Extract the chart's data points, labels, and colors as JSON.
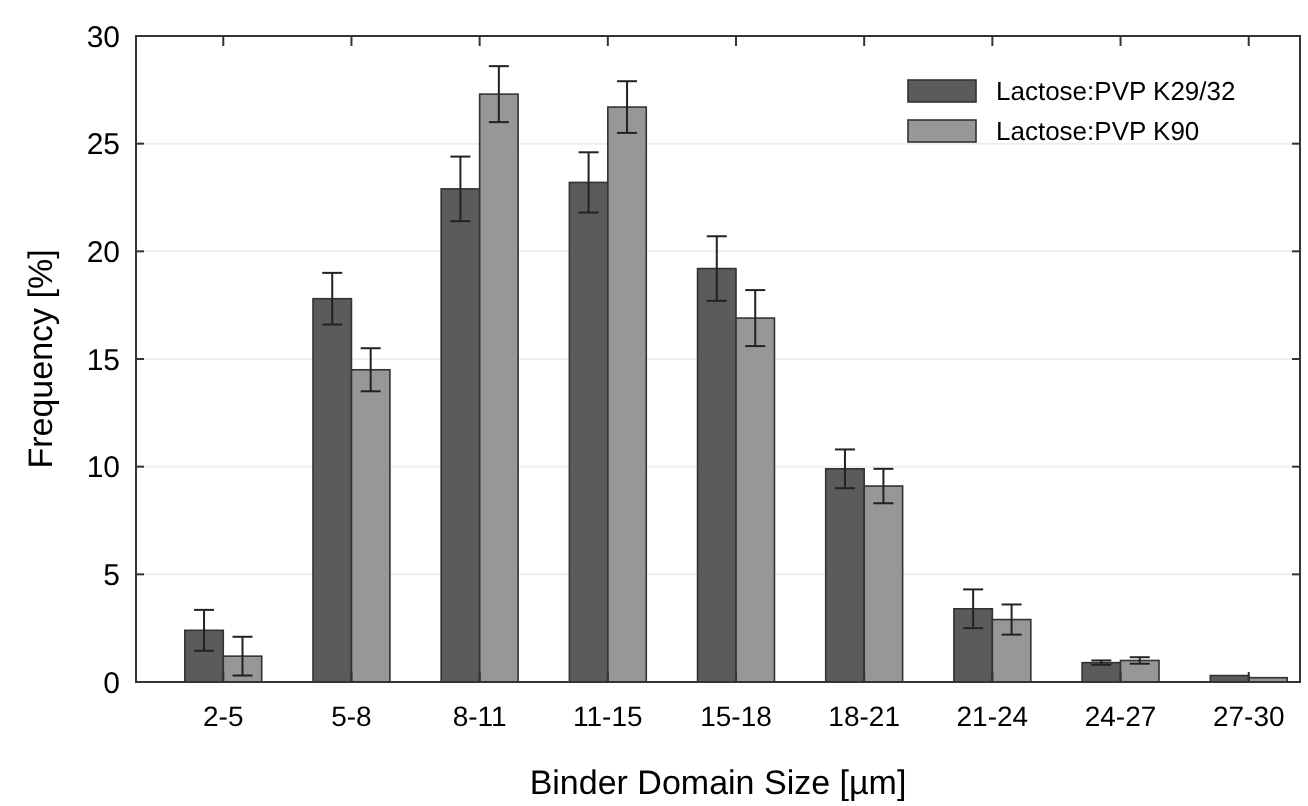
{
  "chart_data": {
    "type": "bar",
    "xlabel": "Binder Domain Size [µm]",
    "ylabel": "Frequency [%]",
    "categories": [
      "2-5",
      "5-8",
      "8-11",
      "11-15",
      "15-18",
      "18-21",
      "21-24",
      "24-27",
      "27-30"
    ],
    "series": [
      {
        "name": "Lactose:PVP K29/32",
        "color": "#5b5b5b",
        "values": [
          2.4,
          17.8,
          22.9,
          23.2,
          19.2,
          9.9,
          3.4,
          0.9,
          0.3
        ],
        "errors": [
          0.95,
          1.2,
          1.5,
          1.4,
          1.5,
          0.9,
          0.9,
          0.1,
          null
        ]
      },
      {
        "name": "Lactose:PVP K90",
        "color": "#979797",
        "values": [
          1.2,
          14.5,
          27.3,
          26.7,
          16.9,
          9.1,
          2.9,
          1.0,
          0.2
        ],
        "errors": [
          0.9,
          1.0,
          1.3,
          1.2,
          1.3,
          0.8,
          0.7,
          0.15,
          null
        ]
      }
    ],
    "ylim": [
      0,
      30
    ],
    "yticks": [
      0,
      5,
      10,
      15,
      20,
      25,
      30
    ],
    "grid": "y",
    "legend": "top right"
  }
}
